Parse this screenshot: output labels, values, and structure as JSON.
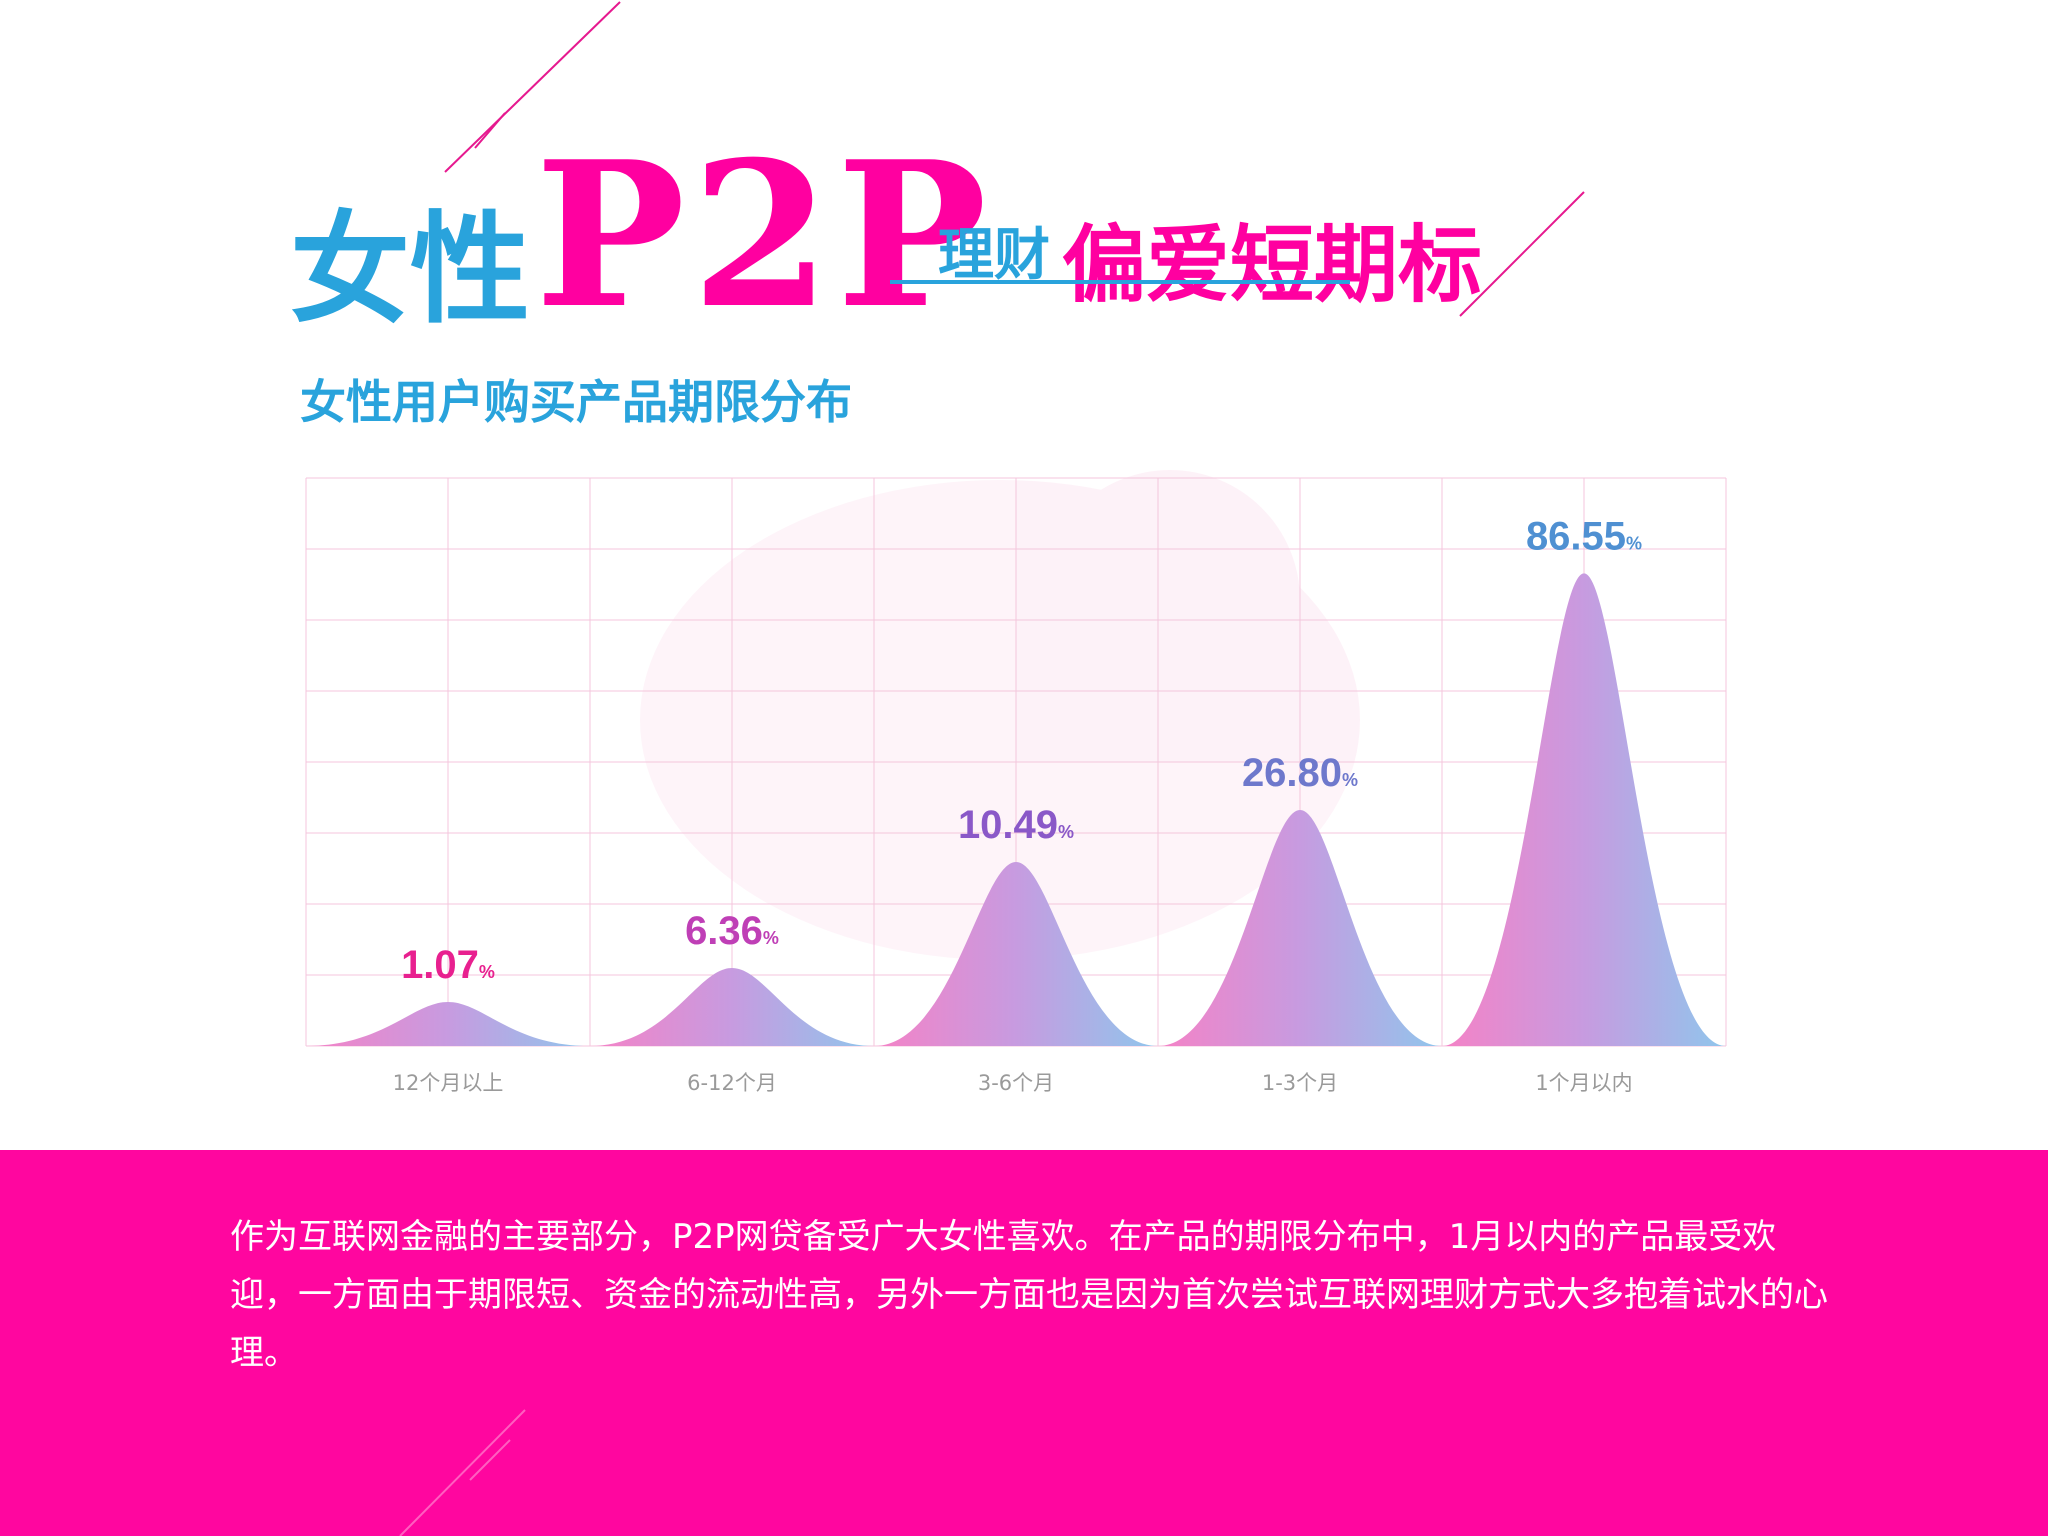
{
  "title": {
    "part1": "女性",
    "part2": "P2P",
    "part3": "理财",
    "part4": "偏爱短期标"
  },
  "subtitle": "女性用户购买产品期限分布",
  "chart_data": {
    "type": "area",
    "categories": [
      "12个月以上",
      "6-12个月",
      "3-6个月",
      "1-3个月",
      "1个月以内"
    ],
    "values": [
      1.07,
      6.36,
      10.49,
      26.8,
      86.55
    ],
    "value_labels": [
      "1.07",
      "6.36",
      "10.49",
      "26.80",
      "86.55"
    ],
    "unit": "%",
    "grid": true,
    "legend": "none"
  },
  "paragraph": "作为互联网金融的主要部分，P2P网贷备受广大女性喜欢。在产品的期限分布中，1月以内的产品最受欢迎，一方面由于期限短、资金的流动性高，另外一方面也是因为首次尝试互联网理财方式大多抱着试水的心理。",
  "colors": {
    "magenta": "#ff00a0",
    "cyan": "#29a3dc",
    "footer_bg": "#ff069f",
    "grid": "#f4c6dc",
    "axis_label": "#9a9a9a",
    "peak_colors": [
      "#e8208f",
      "#bf3fb6",
      "#8a58c8",
      "#6e78cc",
      "#4f90d2"
    ],
    "gradient_stops": [
      "#f582c6",
      "#c79be0",
      "#8fc6ec"
    ]
  }
}
